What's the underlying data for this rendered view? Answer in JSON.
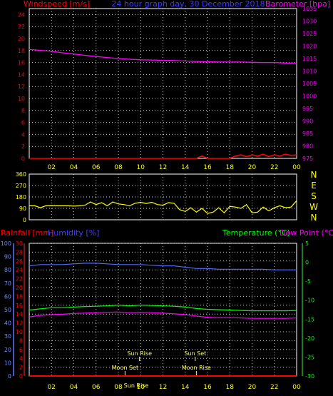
{
  "title": "24 hour graph day, 30 December 2018",
  "colors": {
    "background": "#000000",
    "grid": "#cfcfcf",
    "frame": "#ffffff",
    "wind": "#ff0000",
    "baro": "#ff00ff",
    "dir": "#ffff00",
    "rain": "#ff0000",
    "humidity": "#4d6bff",
    "temperature": "#00ff00",
    "dewpoint": "#ff00ff",
    "axis_text": "#ffff00",
    "label_red": "#ff0000",
    "label_blue": "#3c3cff",
    "label_green": "#00ff00",
    "label_magenta": "#ff00ff"
  },
  "x_ticks": [
    "02",
    "04",
    "06",
    "08",
    "10",
    "12",
    "14",
    "16",
    "18",
    "20",
    "22",
    "00"
  ],
  "chart_data": [
    {
      "type": "line",
      "name": "wind-baro",
      "title": "24 hour graph day, 30 December 2018",
      "left_label": "Windspeed [m/s]",
      "right_label": "Barometer [hpa]",
      "x_range": [
        0,
        24
      ],
      "left_ylim": [
        0,
        25
      ],
      "left_ticks": [
        0,
        2,
        4,
        6,
        8,
        10,
        12,
        14,
        16,
        18,
        20,
        22,
        24
      ],
      "right_ylim": [
        975,
        1035
      ],
      "right_ticks": [
        975,
        980,
        985,
        990,
        995,
        1000,
        1005,
        1010,
        1015,
        1020,
        1025,
        1030,
        1035
      ],
      "series": [
        {
          "name": "Barometer",
          "axis": "right",
          "x": [
            0,
            1,
            2,
            3,
            4,
            5,
            6,
            7,
            8,
            9,
            10,
            11,
            12,
            13,
            14,
            15,
            16,
            17,
            18,
            19,
            20,
            21,
            22,
            23,
            24
          ],
          "values": [
            1018.6,
            1018.3,
            1017.9,
            1017.3,
            1016.8,
            1016.3,
            1015.8,
            1015.4,
            1015.0,
            1014.7,
            1014.5,
            1014.4,
            1014.3,
            1014.2,
            1014.0,
            1013.8,
            1013.7,
            1013.6,
            1013.6,
            1013.6,
            1013.5,
            1013.4,
            1013.4,
            1013.2,
            1013.0
          ]
        },
        {
          "name": "Windspeed",
          "axis": "left",
          "x": [
            0,
            2,
            4,
            6,
            8,
            10,
            12,
            14,
            15,
            15.5,
            16,
            17,
            18,
            18.5,
            19,
            19.5,
            20,
            20.5,
            21,
            21.5,
            22,
            22.5,
            23,
            23.5,
            24
          ],
          "values": [
            0,
            0,
            0,
            0,
            0,
            0,
            0,
            0,
            0,
            0.4,
            0,
            0,
            0,
            0.4,
            0.6,
            0.3,
            0.6,
            0.4,
            0.7,
            0.3,
            0.6,
            0.4,
            0.7,
            0.5,
            0.6
          ]
        }
      ]
    },
    {
      "type": "line",
      "name": "wind-direction",
      "x_range": [
        0,
        24
      ],
      "ylim": [
        0,
        360
      ],
      "ticks": [
        0,
        90,
        180,
        270,
        360
      ],
      "right_labels": [
        "N",
        "W",
        "S",
        "E",
        "N"
      ],
      "series": [
        {
          "name": "Wind direction",
          "x": [
            0,
            0.5,
            1,
            1.5,
            2,
            2.5,
            3,
            3.5,
            4,
            4.5,
            5,
            5.5,
            6,
            6.5,
            7,
            7.5,
            8,
            8.5,
            9,
            9.5,
            10,
            10.5,
            11,
            11.5,
            12,
            12.5,
            13,
            13.5,
            14,
            14.5,
            15,
            15.5,
            16,
            16.5,
            17,
            17.5,
            18,
            18.5,
            19,
            19.5,
            20,
            20.5,
            21,
            21.5,
            22,
            22.5,
            23,
            23.5,
            24
          ],
          "values": [
            110,
            110,
            95,
            110,
            112,
            110,
            110,
            110,
            108,
            110,
            115,
            140,
            120,
            135,
            110,
            140,
            125,
            120,
            110,
            130,
            138,
            128,
            138,
            120,
            115,
            135,
            130,
            80,
            65,
            95,
            60,
            90,
            50,
            60,
            95,
            55,
            105,
            100,
            90,
            120,
            55,
            60,
            100,
            70,
            95,
            110,
            95,
            100,
            150
          ]
        }
      ]
    },
    {
      "type": "line",
      "name": "rain-humidity-temperature",
      "left_label_1": "Rainfall [mm]",
      "left_label_2": "Humidity [%]",
      "right_label_1": "Temperature (°C)",
      "right_label_2": "Dew Point (°C)",
      "x_range": [
        0,
        24
      ],
      "humidity_ylim": [
        0,
        100
      ],
      "humidity_ticks": [
        0,
        10,
        20,
        30,
        40,
        50,
        60,
        70,
        80,
        90,
        100
      ],
      "rain_ylim": [
        0,
        30
      ],
      "rain_ticks": [
        0,
        2,
        4,
        6,
        8,
        10,
        12,
        14,
        16,
        18,
        20,
        22,
        24,
        26,
        28,
        30
      ],
      "temp_ylim": [
        -30,
        5
      ],
      "temp_ticks": [
        5,
        0,
        -5,
        -10,
        -15,
        -20,
        -25,
        -30
      ],
      "series": [
        {
          "name": "Humidity",
          "axis": "humidity",
          "x": [
            0,
            1,
            2,
            3,
            4,
            5,
            6,
            7,
            8,
            9,
            10,
            11,
            12,
            13,
            14,
            15,
            16,
            17,
            18,
            19,
            20,
            21,
            22,
            23,
            24
          ],
          "values": [
            83,
            84,
            84,
            84,
            84.5,
            85,
            85,
            84.5,
            84,
            84,
            84,
            83.5,
            83,
            83,
            82,
            81,
            81,
            80.5,
            80.5,
            80.5,
            80.5,
            80.5,
            80,
            80,
            80
          ]
        },
        {
          "name": "Temperature",
          "axis": "temp",
          "x": [
            0,
            1,
            2,
            3,
            4,
            5,
            6,
            7,
            8,
            9,
            10,
            11,
            12,
            13,
            14,
            15,
            16,
            17,
            18,
            19,
            20,
            21,
            22,
            23,
            24
          ],
          "values": [
            -12.6,
            -12.3,
            -12.0,
            -12.0,
            -11.8,
            -11.7,
            -11.6,
            -11.5,
            -11.3,
            -11.5,
            -11.3,
            -11.4,
            -11.5,
            -11.6,
            -11.8,
            -12.2,
            -12.4,
            -12.5,
            -12.6,
            -12.7,
            -12.8,
            -12.8,
            -12.8,
            -12.8,
            -12.7
          ]
        },
        {
          "name": "Dew Point",
          "axis": "temp",
          "x": [
            0,
            1,
            2,
            3,
            4,
            5,
            6,
            7,
            8,
            9,
            10,
            11,
            12,
            13,
            14,
            15,
            16,
            17,
            18,
            19,
            20,
            21,
            22,
            23,
            24
          ],
          "values": [
            -14.4,
            -14.0,
            -13.8,
            -13.7,
            -13.5,
            -13.4,
            -13.3,
            -13.2,
            -13.1,
            -13.3,
            -13.2,
            -13.3,
            -13.4,
            -13.6,
            -13.8,
            -14.2,
            -14.5,
            -14.6,
            -14.6,
            -14.7,
            -14.8,
            -14.8,
            -14.8,
            -14.8,
            -14.7
          ]
        },
        {
          "name": "Rainfall",
          "axis": "rain",
          "x": [
            0,
            24
          ],
          "values": [
            0,
            0
          ]
        }
      ],
      "annotations": [
        {
          "text": "Sun Rise",
          "x": 9.9,
          "row": "upper"
        },
        {
          "text": "Sun Set",
          "x": 14.9,
          "row": "upper"
        },
        {
          "text": "Moon Set",
          "x": 8.6,
          "row": "lower"
        },
        {
          "text": "Moon Rise",
          "x": 15.0,
          "row": "lower"
        },
        {
          "text": "Sun Rise",
          "x": 9.6,
          "row": "bottom"
        }
      ]
    }
  ]
}
